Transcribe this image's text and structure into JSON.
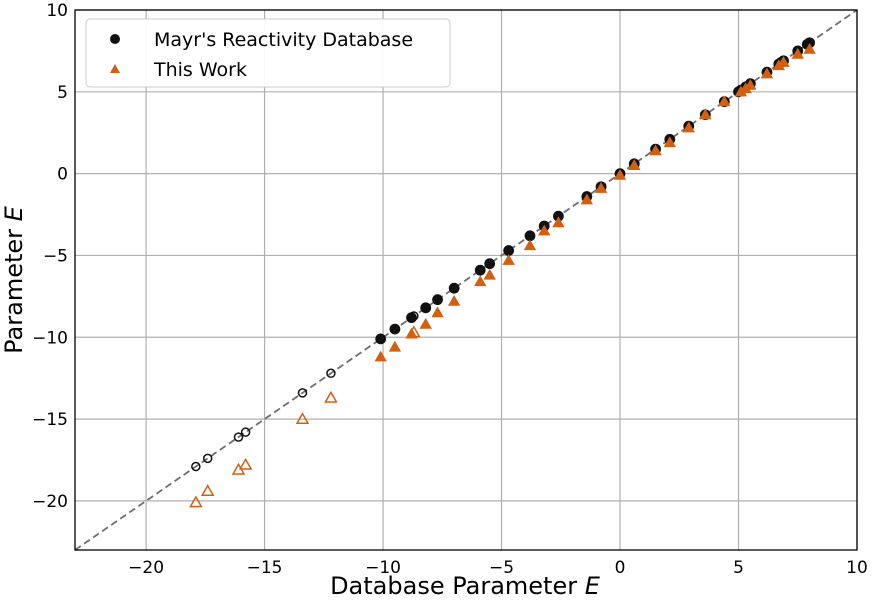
{
  "chart_data": {
    "type": "scatter",
    "title": "",
    "xlabel": "Database Parameter",
    "xlabel_italic": "E",
    "ylabel": "Parameter",
    "ylabel_italic": "E",
    "xlim": [
      -23,
      10
    ],
    "ylim": [
      -23,
      10
    ],
    "xticks": [
      -20,
      -15,
      -10,
      -5,
      0,
      5,
      10
    ],
    "yticks": [
      -20,
      -15,
      -10,
      -5,
      0,
      5,
      10
    ],
    "grid": true,
    "legend_position": "top-left",
    "reference_line": {
      "style": "dashed",
      "color": "#6e6e6e",
      "slope": 1,
      "intercept": 0
    },
    "series": [
      {
        "name": "Mayr's Reactivity Database",
        "marker": "circle",
        "color": "#111111",
        "filled_points": [
          [
            8.0,
            8.0
          ],
          [
            7.9,
            7.9
          ],
          [
            7.5,
            7.5
          ],
          [
            6.9,
            6.9
          ],
          [
            6.8,
            6.8
          ],
          [
            6.7,
            6.7
          ],
          [
            6.2,
            6.2
          ],
          [
            5.5,
            5.5
          ],
          [
            5.3,
            5.3
          ],
          [
            5.1,
            5.1
          ],
          [
            5.0,
            5.0
          ],
          [
            4.4,
            4.4
          ],
          [
            3.6,
            3.6
          ],
          [
            2.9,
            2.9
          ],
          [
            2.1,
            2.1
          ],
          [
            1.5,
            1.5
          ],
          [
            0.6,
            0.6
          ],
          [
            0.0,
            0.0
          ],
          [
            -0.8,
            -0.8
          ],
          [
            -1.4,
            -1.4
          ],
          [
            -2.6,
            -2.6
          ],
          [
            -3.2,
            -3.2
          ],
          [
            -3.8,
            -3.8
          ],
          [
            -4.7,
            -4.7
          ],
          [
            -5.5,
            -5.5
          ],
          [
            -5.9,
            -5.9
          ],
          [
            -7.0,
            -7.0
          ],
          [
            -7.7,
            -7.7
          ],
          [
            -8.2,
            -8.2
          ],
          [
            -8.8,
            -8.8
          ],
          [
            -9.5,
            -9.5
          ],
          [
            -10.1,
            -10.1
          ]
        ],
        "open_points": [
          [
            -8.7,
            -8.7
          ],
          [
            -12.2,
            -12.2
          ],
          [
            -13.4,
            -13.4
          ],
          [
            -15.8,
            -15.8
          ],
          [
            -16.1,
            -16.1
          ],
          [
            -17.4,
            -17.4
          ],
          [
            -17.9,
            -17.9
          ]
        ]
      },
      {
        "name": "This Work",
        "marker": "triangle",
        "color": "#d35f10",
        "filled_points": [
          [
            8.0,
            7.6
          ],
          [
            7.5,
            7.3
          ],
          [
            6.9,
            6.8
          ],
          [
            6.7,
            6.6
          ],
          [
            6.2,
            6.1
          ],
          [
            5.5,
            5.4
          ],
          [
            5.3,
            5.2
          ],
          [
            5.1,
            5.0
          ],
          [
            4.4,
            4.4
          ],
          [
            3.6,
            3.6
          ],
          [
            2.9,
            2.8
          ],
          [
            2.1,
            1.9
          ],
          [
            1.5,
            1.4
          ],
          [
            0.6,
            0.5
          ],
          [
            0.0,
            -0.1
          ],
          [
            -0.8,
            -0.9
          ],
          [
            -1.4,
            -1.6
          ],
          [
            -2.6,
            -3.0
          ],
          [
            -3.2,
            -3.5
          ],
          [
            -3.8,
            -4.4
          ],
          [
            -4.7,
            -5.3
          ],
          [
            -5.5,
            -6.2
          ],
          [
            -5.9,
            -6.6
          ],
          [
            -7.0,
            -7.8
          ],
          [
            -7.7,
            -8.5
          ],
          [
            -8.2,
            -9.2
          ],
          [
            -8.8,
            -9.8
          ],
          [
            -9.5,
            -10.6
          ],
          [
            -10.1,
            -11.2
          ]
        ],
        "open_points": [
          [
            -8.7,
            -9.7
          ],
          [
            -12.2,
            -13.7
          ],
          [
            -13.4,
            -15.0
          ],
          [
            -15.8,
            -17.8
          ],
          [
            -16.1,
            -18.1
          ],
          [
            -17.4,
            -19.4
          ],
          [
            -17.9,
            -20.1
          ]
        ]
      }
    ]
  }
}
